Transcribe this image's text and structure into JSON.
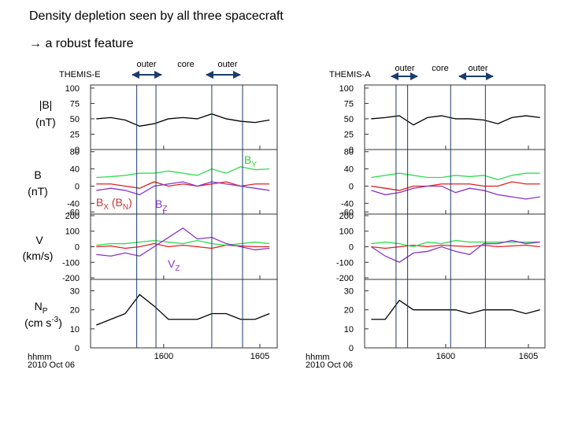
{
  "title": "Density depletion seen by all three spacecraft",
  "subtitle": "→ a robust feature",
  "panel_labels": [
    {
      "lines": [
        "|B|",
        "(nT)"
      ]
    },
    {
      "lines": [
        "B",
        "(nT)"
      ]
    },
    {
      "lines": [
        "V",
        "(km/s)"
      ]
    },
    {
      "parts": [
        "N",
        "P"
      ],
      "units": [
        "(cm s",
        "-3",
        ")"
      ]
    }
  ],
  "annotations": [
    {
      "parts": [
        "B",
        "Y"
      ],
      "color": "#33cc33"
    },
    {
      "parts": [
        "B",
        "X",
        " (B",
        "N",
        ")"
      ],
      "color": "#cc3333"
    },
    {
      "parts": [
        "B",
        "Z"
      ],
      "color": "#8833cc"
    },
    {
      "parts": [
        "V",
        "Z"
      ],
      "color": "#8833cc"
    }
  ],
  "chart_data": [
    {
      "type": "line",
      "title": "THEMIS-E",
      "regions": [
        "outer",
        "core",
        "outer"
      ],
      "xlabel": [
        "hhmm",
        "2010 Oct 06"
      ],
      "xlim": [
        56.2,
        65.9
      ],
      "xticks": [
        {
          "value": 60,
          "label": "1600"
        },
        {
          "value": 65,
          "label": "1605"
        }
      ],
      "markers": [
        58.6,
        59.6,
        62.5,
        64.1
      ],
      "x": [
        56.5,
        57.25,
        58,
        58.75,
        59.5,
        60.25,
        61,
        61.75,
        62.5,
        63.25,
        64,
        64.75,
        65.5
      ],
      "panels": [
        {
          "ylim": [
            0,
            105
          ],
          "yticks": [
            0,
            25,
            50,
            75,
            100
          ],
          "series": [
            {
              "color": "#000000",
              "values": [
                50,
                52,
                48,
                38,
                42,
                50,
                52,
                50,
                58,
                50,
                46,
                44,
                48
              ]
            }
          ]
        },
        {
          "ylim": [
            -65,
            85
          ],
          "yticks": [
            -60,
            -40,
            0,
            40,
            80
          ],
          "series": [
            {
              "color": "#e02020",
              "values": [
                5,
                5,
                0,
                -5,
                10,
                0,
                5,
                0,
                5,
                10,
                0,
                5,
                5
              ]
            },
            {
              "color": "#33dd55",
              "values": [
                20,
                22,
                25,
                30,
                30,
                35,
                30,
                25,
                40,
                30,
                45,
                38,
                40
              ]
            },
            {
              "color": "#8833cc",
              "values": [
                -10,
                -5,
                -10,
                -20,
                0,
                5,
                10,
                0,
                10,
                5,
                0,
                -5,
                -10
              ]
            }
          ]
        },
        {
          "ylim": [
            -210,
            210
          ],
          "yticks": [
            -200,
            -100,
            0,
            100,
            200
          ],
          "series": [
            {
              "color": "#e02020",
              "values": [
                0,
                5,
                -10,
                0,
                20,
                0,
                10,
                0,
                -10,
                10,
                5,
                0,
                0
              ]
            },
            {
              "color": "#33dd55",
              "values": [
                10,
                20,
                20,
                30,
                40,
                30,
                20,
                40,
                20,
                10,
                20,
                30,
                20
              ]
            },
            {
              "color": "#8833cc",
              "values": [
                -50,
                -60,
                -40,
                -60,
                0,
                60,
                120,
                50,
                60,
                20,
                0,
                -20,
                -10
              ]
            }
          ]
        },
        {
          "ylim": [
            0,
            36
          ],
          "yticks": [
            0,
            10,
            20,
            30
          ],
          "series": [
            {
              "color": "#000000",
              "values": [
                12,
                15,
                18,
                28,
                22,
                15,
                15,
                15,
                18,
                18,
                15,
                15,
                18
              ]
            }
          ]
        }
      ]
    },
    {
      "type": "line",
      "title": "THEMIS-A",
      "regions": [
        "outer",
        "core",
        "outer"
      ],
      "xlabel": [
        "hhmm",
        "2010 Oct 06"
      ],
      "xlim": [
        55.1,
        66.0
      ],
      "xticks": [
        {
          "value": 60,
          "label": "1600"
        },
        {
          "value": 65,
          "label": "1605"
        }
      ],
      "markers": [
        57.0,
        57.7,
        60.3,
        62.4
      ],
      "x": [
        55.5,
        56.35,
        57.2,
        58.05,
        58.9,
        59.75,
        60.6,
        61.45,
        62.3,
        63.15,
        64,
        64.85,
        65.7
      ],
      "panels": [
        {
          "ylim": [
            0,
            105
          ],
          "yticks": [
            0,
            25,
            50,
            75,
            100
          ],
          "series": [
            {
              "color": "#000000",
              "values": [
                50,
                52,
                55,
                40,
                52,
                55,
                50,
                50,
                48,
                42,
                52,
                55,
                52
              ]
            }
          ]
        },
        {
          "ylim": [
            -65,
            85
          ],
          "yticks": [
            -60,
            -40,
            0,
            40,
            80
          ],
          "series": [
            {
              "color": "#e02020",
              "values": [
                0,
                -5,
                -10,
                0,
                0,
                5,
                5,
                5,
                0,
                0,
                10,
                5,
                5
              ]
            },
            {
              "color": "#33dd55",
              "values": [
                20,
                25,
                30,
                25,
                20,
                20,
                25,
                22,
                25,
                15,
                25,
                30,
                30
              ]
            },
            {
              "color": "#8833cc",
              "values": [
                -10,
                -20,
                -15,
                -5,
                0,
                0,
                -15,
                -5,
                -10,
                -20,
                -25,
                -30,
                -25
              ]
            }
          ]
        },
        {
          "ylim": [
            -210,
            210
          ],
          "yticks": [
            -200,
            -100,
            0,
            100,
            200
          ],
          "series": [
            {
              "color": "#e02020",
              "values": [
                0,
                -10,
                0,
                10,
                0,
                10,
                5,
                0,
                10,
                0,
                5,
                10,
                0
              ]
            },
            {
              "color": "#33dd55",
              "values": [
                20,
                30,
                20,
                0,
                30,
                20,
                40,
                30,
                30,
                30,
                30,
                30,
                30
              ]
            },
            {
              "color": "#8833cc",
              "values": [
                0,
                -60,
                -100,
                -40,
                -30,
                0,
                -30,
                -50,
                20,
                20,
                40,
                20,
                30
              ]
            }
          ]
        },
        {
          "ylim": [
            0,
            36
          ],
          "yticks": [
            0,
            10,
            20,
            30
          ],
          "series": [
            {
              "color": "#000000",
              "values": [
                15,
                15,
                25,
                20,
                20,
                20,
                20,
                18,
                20,
                20,
                20,
                18,
                20
              ]
            }
          ]
        }
      ]
    }
  ]
}
